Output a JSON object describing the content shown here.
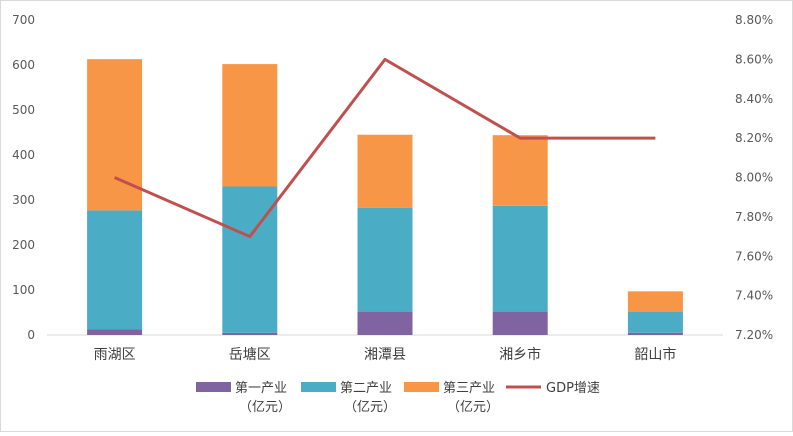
{
  "chart_data": {
    "type": "bar",
    "subtype": "stacked-bar-with-line",
    "categories": [
      "雨湖区",
      "岳塘区",
      "湘潭县",
      "湘乡市",
      "韶山市"
    ],
    "series": [
      {
        "name": "第一产业（亿元）",
        "legend_lines": [
          "第一产业",
          "（亿元）"
        ],
        "type": "bar",
        "axis": "left",
        "color": "#8064A2",
        "values": [
          13,
          5,
          52,
          52,
          5
        ]
      },
      {
        "name": "第二产业（亿元）",
        "legend_lines": [
          "第二产业",
          "（亿元）"
        ],
        "type": "bar",
        "axis": "left",
        "color": "#4BACC6",
        "values": [
          264,
          325,
          231,
          235,
          47
        ]
      },
      {
        "name": "第三产业（亿元）",
        "legend_lines": [
          "第三产业",
          "（亿元）"
        ],
        "type": "bar",
        "axis": "left",
        "color": "#F79646",
        "values": [
          336,
          272,
          162,
          157,
          45
        ]
      },
      {
        "name": "GDP增速",
        "legend_lines": [
          "GDP增速"
        ],
        "type": "line",
        "axis": "right",
        "color": "#C0504D",
        "values": [
          8.0,
          7.7,
          8.6,
          8.2,
          8.2
        ]
      }
    ],
    "left_axis": {
      "min": 0,
      "max": 700,
      "step": 100,
      "tick_labels": [
        "0",
        "100",
        "200",
        "300",
        "400",
        "500",
        "600",
        "700"
      ]
    },
    "right_axis": {
      "min": 7.2,
      "max": 8.8,
      "step": 0.2,
      "tick_labels": [
        "7.20%",
        "7.40%",
        "7.60%",
        "7.80%",
        "8.00%",
        "8.20%",
        "8.40%",
        "8.60%",
        "8.80%"
      ]
    },
    "grid": false,
    "legend_position": "bottom"
  }
}
